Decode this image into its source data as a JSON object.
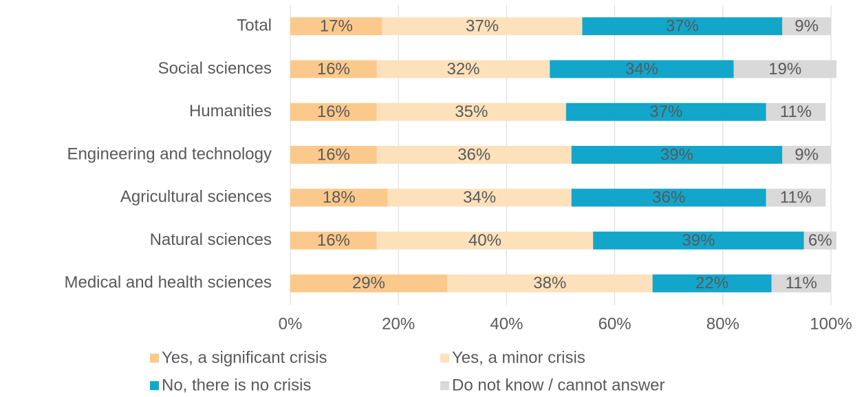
{
  "chart_data": {
    "type": "stacked_hbar",
    "categories": [
      "Total",
      "Social sciences",
      "Humanities",
      "Engineering and technology",
      "Agricultural sciences",
      "Natural sciences",
      "Medical and health sciences"
    ],
    "series": [
      {
        "name": "Yes, a significant crisis",
        "color": "#fcc98c",
        "values": [
          17,
          16,
          16,
          16,
          18,
          16,
          29
        ],
        "value_labels": [
          "17%",
          "16%",
          "16%",
          "16%",
          "18%",
          "16%",
          "29%"
        ]
      },
      {
        "name": "Yes, a minor crisis",
        "color": "#fde1bb",
        "values": [
          37,
          32,
          35,
          36,
          34,
          40,
          38
        ],
        "value_labels": [
          "37%",
          "32%",
          "35%",
          "36%",
          "34%",
          "40%",
          "38%"
        ]
      },
      {
        "name": "No, there is no crisis",
        "color": "#13a6cb",
        "values": [
          37,
          34,
          37,
          39,
          36,
          39,
          22
        ],
        "value_labels": [
          "37%",
          "34%",
          "37%",
          "39%",
          "36%",
          "39%",
          "22%"
        ]
      },
      {
        "name": "Do not know / cannot answer",
        "color": "#d9d9d9",
        "values": [
          9,
          19,
          11,
          9,
          11,
          6,
          11
        ],
        "value_labels": [
          "9%",
          "19%",
          "11%",
          "9%",
          "11%",
          "6%",
          "11%"
        ]
      }
    ],
    "xlim": [
      0,
      100
    ],
    "xticks": [
      {
        "value": 0,
        "label": "0%"
      },
      {
        "value": 20,
        "label": "20%"
      },
      {
        "value": 40,
        "label": "40%"
      },
      {
        "value": 60,
        "label": "60%"
      },
      {
        "value": 80,
        "label": "80%"
      },
      {
        "value": 100,
        "label": "100%"
      }
    ],
    "grid": true
  }
}
